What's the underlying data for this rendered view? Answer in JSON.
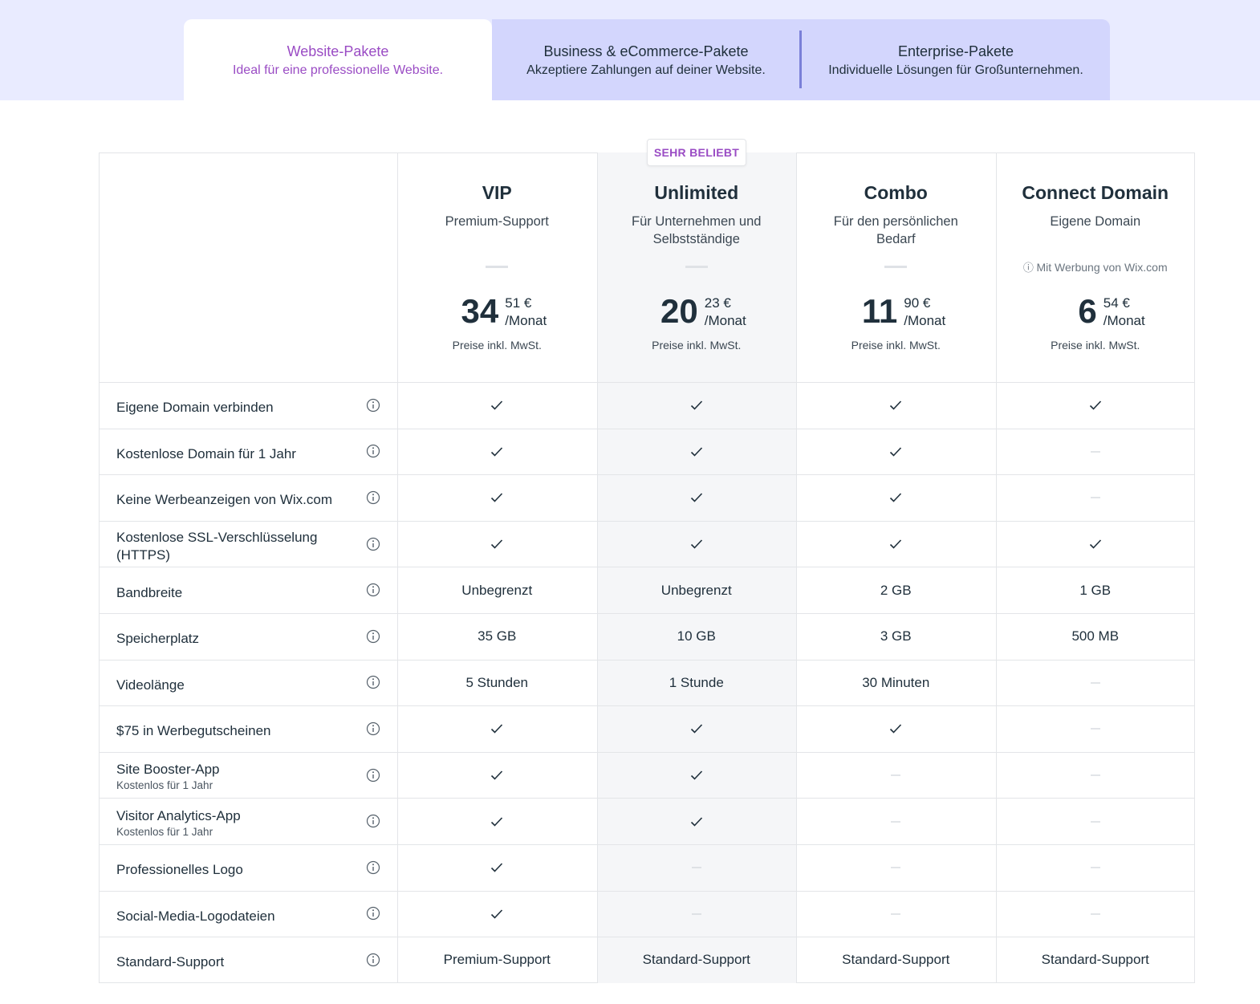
{
  "tabs": [
    {
      "title": "Website-Pakete",
      "subtitle": "Ideal für eine professionelle Website."
    },
    {
      "title": "Business & eCommerce-Pakete",
      "subtitle": "Akzeptiere Zahlungen auf deiner Website."
    },
    {
      "title": "Enterprise-Pakete",
      "subtitle": "Individuelle Lösungen für Großunternehmen."
    }
  ],
  "badge": "SEHR BELIEBT",
  "plans": [
    {
      "name": "VIP",
      "description": "Premium-Support",
      "price_main": "34",
      "price_cents": "51 €",
      "period": "/Monat",
      "price_note": "Preise inkl. MwSt."
    },
    {
      "name": "Unlimited",
      "description": "Für Unternehmen und Selbstständige",
      "price_main": "20",
      "price_cents": "23 €",
      "period": "/Monat",
      "price_note": "Preise inkl. MwSt."
    },
    {
      "name": "Combo",
      "description": "Für den persönlichen Bedarf",
      "price_main": "11",
      "price_cents": "90 €",
      "period": "/Monat",
      "price_note": "Preise inkl. MwSt."
    },
    {
      "name": "Connect Domain",
      "description": "Eigene Domain",
      "ad_note": "Mit Werbung von Wix.com",
      "price_main": "6",
      "price_cents": "54 €",
      "period": "/Monat",
      "price_note": "Preise inkl. MwSt."
    }
  ],
  "features": [
    {
      "label": "Eigene Domain verbinden",
      "values": [
        true,
        true,
        true,
        true
      ]
    },
    {
      "label": "Kostenlose Domain für 1 Jahr",
      "values": [
        true,
        true,
        true,
        false
      ]
    },
    {
      "label": "Keine Werbeanzeigen von Wix.com",
      "values": [
        true,
        true,
        true,
        false
      ]
    },
    {
      "label": "Kostenlose SSL-Verschlüsselung (HTTPS)",
      "values": [
        true,
        true,
        true,
        true
      ]
    },
    {
      "label": "Bandbreite",
      "values": [
        "Unbegrenzt",
        "Unbegrenzt",
        "2 GB",
        "1 GB"
      ]
    },
    {
      "label": "Speicherplatz",
      "values": [
        "35 GB",
        "10 GB",
        "3 GB",
        "500 MB"
      ]
    },
    {
      "label": "Videolänge",
      "values": [
        "5 Stunden",
        "1 Stunde",
        "30 Minuten",
        false
      ]
    },
    {
      "label": "$75 in Werbegutscheinen",
      "values": [
        true,
        true,
        true,
        false
      ]
    },
    {
      "label": "Site Booster-App",
      "sublabel": "Kostenlos für 1 Jahr",
      "values": [
        true,
        true,
        false,
        false
      ]
    },
    {
      "label": "Visitor Analytics-App",
      "sublabel": "Kostenlos für 1 Jahr",
      "values": [
        true,
        true,
        false,
        false
      ]
    },
    {
      "label": "Professionelles Logo",
      "values": [
        true,
        false,
        false,
        false
      ]
    },
    {
      "label": "Social-Media-Logodateien",
      "values": [
        true,
        false,
        false,
        false
      ]
    },
    {
      "label": "Standard-Support",
      "values": [
        "Premium-Support",
        "Standard-Support",
        "Standard-Support",
        "Standard-Support"
      ]
    }
  ]
}
